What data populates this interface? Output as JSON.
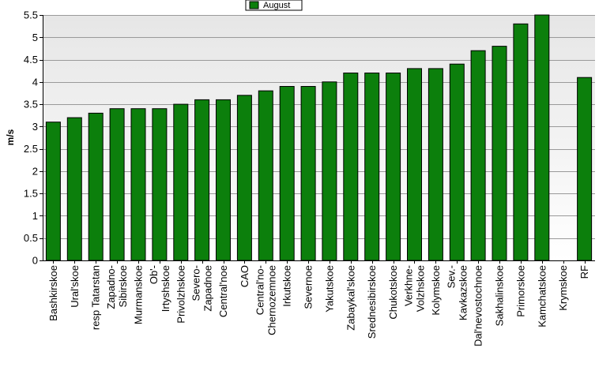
{
  "chart_data": {
    "type": "bar",
    "ylabel": "m/s",
    "ylim": [
      0,
      5.5
    ],
    "yticks": [
      "0",
      "0.5",
      "1",
      "1.5",
      "2",
      "2.5",
      "3",
      "3.5",
      "4",
      "4.5",
      "5",
      "5.5"
    ],
    "grid": true,
    "legend_position": "top-center",
    "series": [
      {
        "name": "August",
        "color": "#0c7f0c",
        "values": [
          3.1,
          3.2,
          3.3,
          3.4,
          3.4,
          3.4,
          3.5,
          3.6,
          3.6,
          3.7,
          3.8,
          3.9,
          3.9,
          4.0,
          4.2,
          4.2,
          4.2,
          4.3,
          4.3,
          4.4,
          4.7,
          4.8,
          5.3,
          5.5,
          null,
          4.1
        ]
      }
    ],
    "categories": [
      [
        "Bashkirskoe"
      ],
      [
        "Ural'skoe"
      ],
      [
        "resp Tatarstan"
      ],
      [
        "Zapadno-",
        "Sibirskoe"
      ],
      [
        "Murmanskoe"
      ],
      [
        "Ob'-",
        "Irtyshskoe"
      ],
      [
        "Privolzhskoe"
      ],
      [
        "Severo-",
        "Zapadnoe"
      ],
      [
        "Central'noe"
      ],
      [
        "CAO"
      ],
      [
        "Central'no-",
        "Chernozemnoe"
      ],
      [
        "Irkutskoe"
      ],
      [
        "Severnoe"
      ],
      [
        "Yakutskoe"
      ],
      [
        "Zabaykal'skoe"
      ],
      [
        "Srednesibirskoe"
      ],
      [
        "Chukotskoe"
      ],
      [
        "Verkhne-",
        "Volzhskoe"
      ],
      [
        "Kolymskoe"
      ],
      [
        "Sev.-",
        "Kavkazskoe"
      ],
      [
        "Dal'nevostochnoe"
      ],
      [
        "Sakhalinskoe"
      ],
      [
        "Primorskoe"
      ],
      [
        "Kamchatskoe"
      ],
      [
        "Krymskoe"
      ],
      [
        "RF"
      ]
    ]
  }
}
